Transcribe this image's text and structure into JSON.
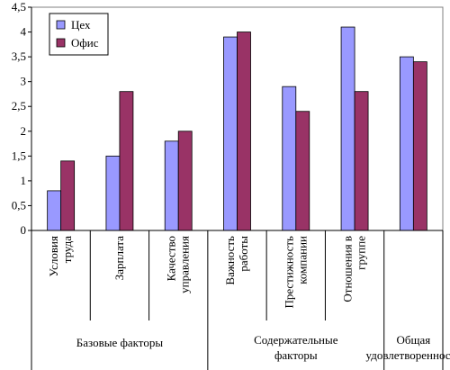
{
  "chart_data": {
    "type": "bar",
    "title": "",
    "xlabel": "",
    "ylabel": "",
    "ylim": [
      0,
      4.5
    ],
    "y_ticks": [
      "0",
      "0,5",
      "1",
      "1,5",
      "2",
      "2,5",
      "3",
      "3,5",
      "4",
      "4,5"
    ],
    "grid": false,
    "legend_position": "top-left",
    "categories": [
      [
        "Условия",
        "труда"
      ],
      [
        "Зарплата"
      ],
      [
        "Качество",
        "управления"
      ],
      [
        "Важность",
        "работы"
      ],
      [
        "Престижность",
        "компании"
      ],
      [
        "Отношения в",
        "группе"
      ],
      []
    ],
    "groups": [
      {
        "lines": [
          "Базовые факторы"
        ],
        "span": [
          0,
          2
        ]
      },
      {
        "lines": [
          "Содержательные",
          "факторы"
        ],
        "span": [
          3,
          5
        ]
      },
      {
        "lines": [
          "Общая",
          "удовлетворенность"
        ],
        "span": [
          6,
          6
        ]
      }
    ],
    "series": [
      {
        "name": "Цех",
        "color": "#9999ff",
        "values": [
          0.8,
          1.5,
          1.8,
          3.9,
          2.9,
          4.1,
          3.5
        ]
      },
      {
        "name": "Офис",
        "color": "#993366",
        "values": [
          1.4,
          2.8,
          2.0,
          4.0,
          2.4,
          2.8,
          3.4
        ]
      }
    ]
  }
}
